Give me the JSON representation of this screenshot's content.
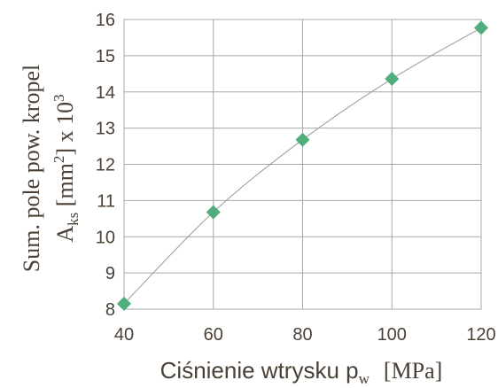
{
  "chart_data": {
    "type": "scatter",
    "x": [
      40,
      60,
      80,
      100,
      120
    ],
    "y": [
      8.15,
      10.68,
      12.68,
      14.36,
      15.77
    ],
    "xlim": [
      40,
      120
    ],
    "ylim": [
      8,
      16
    ],
    "xticks": [
      "40",
      "60",
      "80",
      "100",
      "120"
    ],
    "yticks": [
      "8",
      "9",
      "10",
      "11",
      "12",
      "13",
      "14",
      "15",
      "16"
    ],
    "grid": true,
    "trendline": true,
    "marker": "diamond",
    "colors": {
      "marker": "#4fae7c",
      "trendline": "#9a9a9a",
      "grid": "#a8a8a8",
      "text": "#4a4036"
    },
    "ylabel": {
      "line1": "Sum. pole pow. kropel",
      "line2_main": "A",
      "line2_sub": "ks",
      "line2_unit_open": " [mm",
      "line2_unit_sup": "2",
      "line2_unit_close": "] x 10",
      "line2_exp": "3"
    },
    "xlabel": {
      "text": "Ciśnienie wtrysku p",
      "sub": "w",
      "unit": "[MPa]"
    }
  }
}
